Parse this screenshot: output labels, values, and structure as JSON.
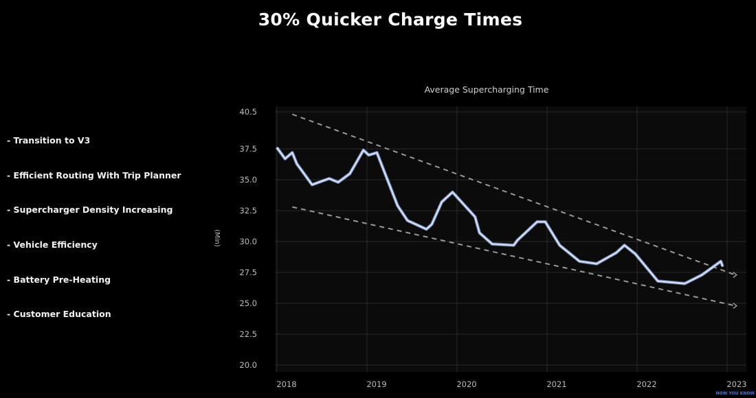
{
  "title": "30% Quicker Charge Times",
  "bullets": [
    "- Transition to V3",
    "- Efficient Routing With Trip Planner",
    "- Supercharger Density Increasing",
    "- Vehicle Efficiency",
    "- Battery Pre-Heating",
    "- Customer Education"
  ],
  "logo": "NOW YOU KNOW",
  "chart_data": {
    "type": "line",
    "title": "Average Supercharging Time",
    "xlabel": "",
    "ylabel": "(Min)",
    "xlim": [
      2018,
      2023.15
    ],
    "ylim": [
      20.0,
      40.5
    ],
    "yticks": [
      "40.5",
      "37.5",
      "35.0",
      "32.5",
      "30.0",
      "27.5",
      "25.0",
      "22.5",
      "20.0"
    ],
    "ytick_values": [
      40.5,
      37.5,
      35.0,
      32.5,
      30.0,
      27.5,
      25.0,
      22.5,
      20.0
    ],
    "xticks": [
      "2018",
      "2019",
      "2020",
      "2021",
      "2022",
      "2023"
    ],
    "xtick_values": [
      2018,
      2019,
      2020,
      2021,
      2022,
      2023
    ],
    "grid": true,
    "colors": {
      "line": "#c9d8f5",
      "trend": "#9a9a9a",
      "grid": "#2a2a2a"
    },
    "series": [
      {
        "name": "Average Supercharging Time",
        "x": [
          2018.0,
          2018.09,
          2018.17,
          2018.22,
          2018.39,
          2018.58,
          2018.68,
          2018.81,
          2018.96,
          2019.02,
          2019.11,
          2019.19,
          2019.34,
          2019.45,
          2019.66,
          2019.72,
          2019.83,
          2019.95,
          2020.2,
          2020.25,
          2020.39,
          2020.63,
          2020.67,
          2020.89,
          2020.98,
          2021.14,
          2021.36,
          2021.55,
          2021.77,
          2021.86,
          2021.98,
          2022.23,
          2022.53,
          2022.72,
          2022.93,
          2022.95
        ],
        "y": [
          37.6,
          36.7,
          37.2,
          36.3,
          34.6,
          35.1,
          34.8,
          35.5,
          37.4,
          37.0,
          37.2,
          35.7,
          32.9,
          31.7,
          31.0,
          31.4,
          33.2,
          34.0,
          32.0,
          30.7,
          29.8,
          29.7,
          30.1,
          31.6,
          31.6,
          29.7,
          28.4,
          28.2,
          29.1,
          29.7,
          29.0,
          26.8,
          26.6,
          27.3,
          28.4,
          28.0
        ]
      }
    ],
    "trendlines": [
      {
        "name": "upper-trend",
        "x": [
          2018.17,
          2023.09
        ],
        "y": [
          40.3,
          27.3
        ]
      },
      {
        "name": "lower-trend",
        "x": [
          2018.17,
          2023.09
        ],
        "y": [
          32.8,
          24.8
        ]
      }
    ]
  }
}
